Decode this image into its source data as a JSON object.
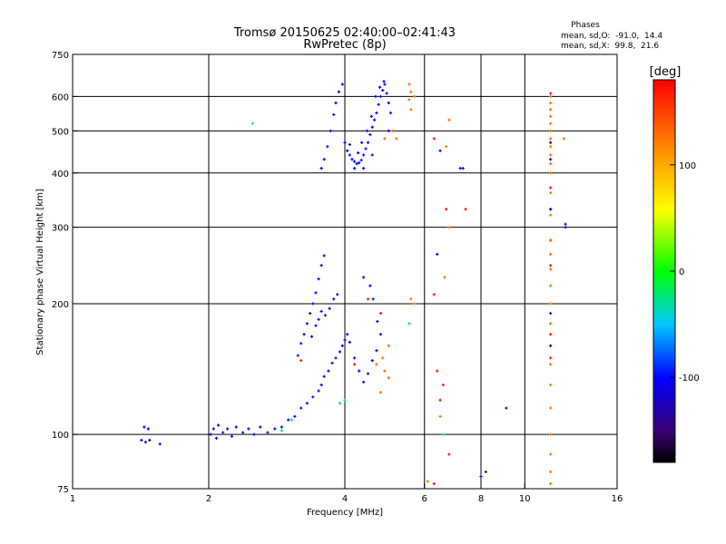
{
  "chart_data": {
    "type": "scatter",
    "title": "Tromsø 20150625 02:40:00–02:41:43",
    "subtitle": "RwPretec (8p)",
    "xlabel": "Frequency [MHz]",
    "ylabel": "Stationary phase Virtual Height [km]",
    "x_scale": "log",
    "y_scale": "log",
    "xlim": [
      1,
      16
    ],
    "ylim": [
      75,
      750
    ],
    "x_ticks": [
      1,
      2,
      4,
      6,
      8,
      10,
      16
    ],
    "y_ticks": [
      75,
      100,
      200,
      300,
      400,
      500,
      600,
      750
    ],
    "grid_x": [
      2,
      4,
      6,
      8,
      10
    ],
    "grid_y": [
      100,
      200,
      300,
      400,
      500,
      600
    ],
    "phases_box": {
      "heading": "Phases",
      "line1": "mean, sd,O:  -91.0,  14.4",
      "line2": "mean, sd,X:  99.8,  21.6"
    },
    "colorbar": {
      "label": "[deg]",
      "range": [
        -180,
        180
      ],
      "ticks": [
        100,
        0,
        -100
      ]
    },
    "series": [
      {
        "phase": -100,
        "points": [
          [
            1.42,
            97
          ],
          [
            1.45,
            96
          ],
          [
            1.48,
            97
          ],
          [
            1.44,
            104
          ],
          [
            1.47,
            103
          ],
          [
            1.56,
            95
          ],
          [
            2.02,
            100
          ],
          [
            2.05,
            103
          ],
          [
            2.08,
            98
          ],
          [
            2.1,
            105
          ],
          [
            2.15,
            101
          ],
          [
            2.2,
            103
          ],
          [
            2.25,
            99
          ],
          [
            2.3,
            104
          ],
          [
            2.38,
            101
          ],
          [
            2.45,
            103
          ],
          [
            2.52,
            100
          ],
          [
            2.6,
            104
          ],
          [
            2.7,
            101
          ],
          [
            2.8,
            103
          ],
          [
            2.9,
            104
          ],
          [
            3.0,
            108
          ],
          [
            3.1,
            110
          ],
          [
            3.2,
            115
          ],
          [
            3.3,
            118
          ],
          [
            3.4,
            122
          ],
          [
            3.5,
            126
          ],
          [
            3.55,
            130
          ],
          [
            3.6,
            136
          ],
          [
            3.68,
            140
          ],
          [
            3.75,
            146
          ],
          [
            3.82,
            150
          ],
          [
            3.9,
            155
          ],
          [
            3.95,
            160
          ],
          [
            4.0,
            165
          ],
          [
            4.05,
            170
          ],
          [
            4.1,
            163
          ],
          [
            4.2,
            150
          ],
          [
            4.3,
            140
          ],
          [
            4.4,
            132
          ],
          [
            4.5,
            138
          ],
          [
            4.6,
            148
          ],
          [
            4.7,
            156
          ],
          [
            4.8,
            170
          ],
          [
            3.15,
            152
          ],
          [
            3.2,
            162
          ],
          [
            3.25,
            170
          ],
          [
            3.3,
            180
          ],
          [
            3.35,
            190
          ],
          [
            3.4,
            200
          ],
          [
            3.45,
            212
          ],
          [
            3.5,
            228
          ],
          [
            3.55,
            245
          ],
          [
            3.6,
            258
          ],
          [
            3.38,
            168
          ],
          [
            3.45,
            178
          ],
          [
            3.5,
            184
          ],
          [
            3.55,
            192
          ],
          [
            3.62,
            188
          ],
          [
            3.7,
            195
          ],
          [
            3.78,
            205
          ],
          [
            3.85,
            210
          ],
          [
            4.4,
            230
          ],
          [
            4.55,
            220
          ],
          [
            4.62,
            205
          ],
          [
            4.72,
            182
          ],
          [
            3.55,
            410
          ],
          [
            3.6,
            430
          ],
          [
            3.66,
            460
          ],
          [
            3.72,
            500
          ],
          [
            3.78,
            545
          ],
          [
            3.82,
            580
          ],
          [
            3.88,
            615
          ],
          [
            3.95,
            640
          ],
          [
            4.0,
            470
          ],
          [
            4.05,
            450
          ],
          [
            4.1,
            440
          ],
          [
            4.15,
            430
          ],
          [
            4.2,
            425
          ],
          [
            4.25,
            420
          ],
          [
            4.3,
            422
          ],
          [
            4.35,
            428
          ],
          [
            4.4,
            440
          ],
          [
            4.45,
            455
          ],
          [
            4.5,
            470
          ],
          [
            4.55,
            490
          ],
          [
            4.6,
            510
          ],
          [
            4.65,
            530
          ],
          [
            4.7,
            550
          ],
          [
            4.75,
            575
          ],
          [
            4.8,
            600
          ],
          [
            4.85,
            620
          ],
          [
            4.9,
            640
          ],
          [
            4.95,
            610
          ],
          [
            5.0,
            580
          ],
          [
            5.05,
            550
          ],
          [
            4.2,
            410
          ],
          [
            4.28,
            445
          ],
          [
            4.36,
            470
          ],
          [
            4.48,
            500
          ],
          [
            4.58,
            540
          ],
          [
            4.68,
            600
          ],
          [
            4.78,
            630
          ],
          [
            4.88,
            650
          ],
          [
            5.0,
            500
          ],
          [
            4.1,
            465
          ],
          [
            4.6,
            440
          ],
          [
            4.4,
            410
          ],
          [
            6.4,
            260
          ],
          [
            11.4,
            430
          ],
          [
            11.4,
            470
          ],
          [
            12.3,
            305
          ],
          [
            9.1,
            115
          ],
          [
            7.2,
            410
          ],
          [
            8.0,
            80
          ],
          [
            11.4,
            330
          ],
          [
            11.4,
            280
          ]
        ]
      },
      {
        "phase": 130,
        "points": [
          [
            5.55,
            640
          ],
          [
            5.6,
            615
          ],
          [
            5.55,
            590
          ],
          [
            5.6,
            560
          ],
          [
            5.7,
            600
          ],
          [
            11.4,
            600
          ],
          [
            11.4,
            580
          ],
          [
            11.4,
            560
          ],
          [
            11.4,
            540
          ],
          [
            11.4,
            520
          ],
          [
            11.4,
            500
          ],
          [
            11.4,
            480
          ],
          [
            11.4,
            460
          ],
          [
            11.4,
            440
          ],
          [
            11.4,
            420
          ],
          [
            11.4,
            400
          ],
          [
            11.4,
            360
          ],
          [
            11.4,
            320
          ],
          [
            11.4,
            280
          ],
          [
            11.4,
            260
          ],
          [
            11.4,
            240
          ],
          [
            11.4,
            220
          ],
          [
            11.4,
            200
          ],
          [
            11.4,
            180
          ],
          [
            11.4,
            160
          ],
          [
            11.4,
            145
          ],
          [
            11.4,
            130
          ],
          [
            11.4,
            115
          ],
          [
            11.4,
            100
          ],
          [
            11.4,
            90
          ],
          [
            11.4,
            82
          ],
          [
            11.4,
            77
          ],
          [
            12.2,
            480
          ],
          [
            5.2,
            480
          ],
          [
            5.1,
            500
          ],
          [
            4.9,
            480
          ],
          [
            5.6,
            205
          ],
          [
            5.7,
            200
          ],
          [
            4.85,
            150
          ],
          [
            4.9,
            140
          ],
          [
            5.0,
            135
          ],
          [
            4.8,
            125
          ],
          [
            5.0,
            160
          ],
          [
            4.7,
            145
          ],
          [
            6.5,
            110
          ],
          [
            6.65,
            230
          ],
          [
            6.8,
            530
          ],
          [
            6.8,
            300
          ],
          [
            6.7,
            460
          ],
          [
            6.1,
            78
          ]
        ]
      },
      {
        "phase": 170,
        "points": [
          [
            6.3,
            480
          ],
          [
            6.7,
            330
          ],
          [
            7.4,
            330
          ],
          [
            6.3,
            210
          ],
          [
            6.4,
            140
          ],
          [
            6.5,
            120
          ],
          [
            6.6,
            130
          ],
          [
            6.8,
            90
          ],
          [
            6.3,
            77
          ],
          [
            11.4,
            170
          ],
          [
            11.4,
            150
          ],
          [
            11.4,
            245
          ],
          [
            11.4,
            370
          ],
          [
            11.4,
            610
          ],
          [
            4.2,
            145
          ],
          [
            3.2,
            148
          ],
          [
            4.5,
            205
          ],
          [
            4.8,
            190
          ]
        ]
      },
      {
        "phase": -30,
        "points": [
          [
            2.5,
            520
          ],
          [
            4.0,
            120
          ],
          [
            3.9,
            118
          ],
          [
            6.6,
            100
          ],
          [
            5.55,
            180
          ],
          [
            2.9,
            102
          ],
          [
            3.05,
            108
          ]
        ]
      },
      {
        "phase": -145,
        "points": [
          [
            7.3,
            410
          ],
          [
            6.5,
            450
          ],
          [
            11.4,
            330
          ],
          [
            11.4,
            190
          ],
          [
            11.4,
            160
          ],
          [
            12.3,
            300
          ],
          [
            8.2,
            82
          ]
        ]
      }
    ]
  }
}
